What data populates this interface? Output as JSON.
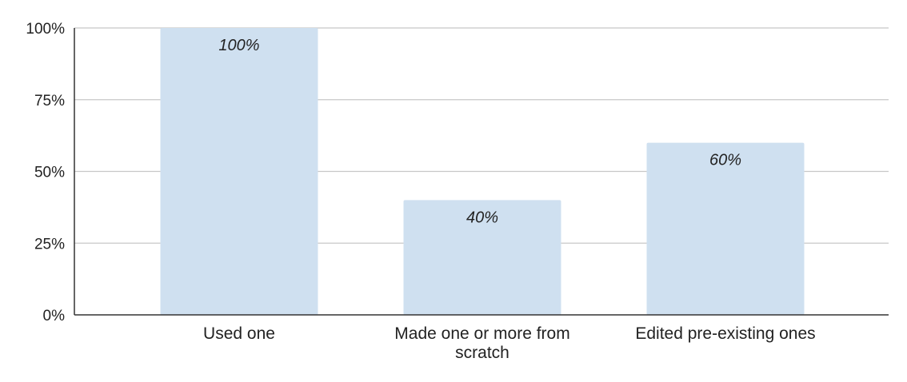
{
  "chart_data": {
    "type": "bar",
    "categories": [
      [
        "Used one"
      ],
      [
        "Made one or more from",
        "scratch"
      ],
      [
        "Edited pre-existing ones"
      ]
    ],
    "values": [
      100,
      40,
      60
    ],
    "data_labels": [
      "100%",
      "40%",
      "60%"
    ],
    "ylim": [
      0,
      100
    ],
    "yticks": [
      0,
      25,
      50,
      75,
      100
    ],
    "ytick_labels": [
      "0%",
      "25%",
      "50%",
      "75%",
      "100%"
    ],
    "grid": true,
    "legend": "none",
    "colors": {
      "bar": "#cfe0f0",
      "grid": "#c8c8c8",
      "axis": "#333333",
      "text": "#222222"
    }
  }
}
